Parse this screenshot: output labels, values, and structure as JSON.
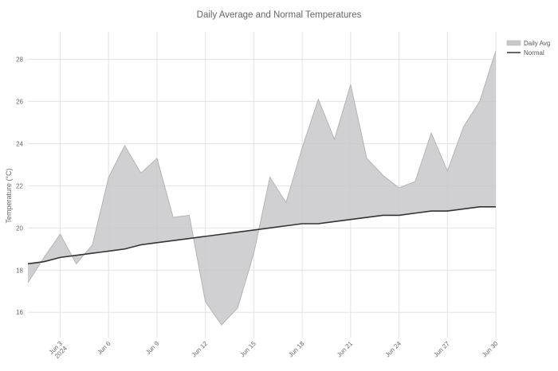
{
  "chart_data": {
    "type": "area",
    "title": "Daily Average and Normal Temperatures",
    "xlabel": "",
    "ylabel": "Temperature (°C)",
    "x": [
      "2024-06-02",
      "2024-06-03",
      "2024-06-04",
      "2024-06-05",
      "2024-06-06",
      "2024-06-07",
      "2024-06-08",
      "2024-06-09",
      "2024-06-10",
      "2024-06-11",
      "2024-06-12",
      "2024-06-13",
      "2024-06-14",
      "2024-06-15",
      "2024-06-16",
      "2024-06-17",
      "2024-06-18",
      "2024-06-19",
      "2024-06-20",
      "2024-06-21",
      "2024-06-22",
      "2024-06-23",
      "2024-06-24",
      "2024-06-25",
      "2024-06-26",
      "2024-06-27",
      "2024-06-28",
      "2024-06-29",
      "2024-06-30"
    ],
    "start_date": "2024-06-01",
    "start_daily": 17.4,
    "start_normal": 18.3,
    "series": [
      {
        "name": "Daily Avg",
        "color": "#c8c8cb",
        "values": [
          18.6,
          19.7,
          18.3,
          19.2,
          22.4,
          23.9,
          22.6,
          23.3,
          20.5,
          20.6,
          16.5,
          15.4,
          16.2,
          18.8,
          22.4,
          21.2,
          23.8,
          26.1,
          24.2,
          26.8,
          23.3,
          22.5,
          21.9,
          22.2,
          24.5,
          22.7,
          24.8,
          26.0,
          28.4
        ]
      },
      {
        "name": "Normal",
        "color": "#333333",
        "values": [
          18.4,
          18.6,
          18.7,
          18.8,
          18.9,
          19.0,
          19.2,
          19.3,
          19.4,
          19.5,
          19.6,
          19.7,
          19.8,
          19.9,
          20.0,
          20.1,
          20.2,
          20.2,
          20.3,
          20.4,
          20.5,
          20.6,
          20.6,
          20.7,
          20.8,
          20.8,
          20.9,
          21.0,
          21.0
        ]
      }
    ],
    "x_ticks": [
      "Jun 3",
      "Jun 6",
      "Jun 9",
      "Jun 12",
      "Jun 15",
      "Jun 18",
      "Jun 21",
      "Jun 24",
      "Jun 27",
      "Jun 30"
    ],
    "x_tick_year": "2024",
    "y_ticks": [
      16,
      18,
      20,
      22,
      24,
      26,
      28
    ],
    "ylim": [
      14.8,
      29.3
    ],
    "grid": true,
    "legend": "top-right"
  }
}
